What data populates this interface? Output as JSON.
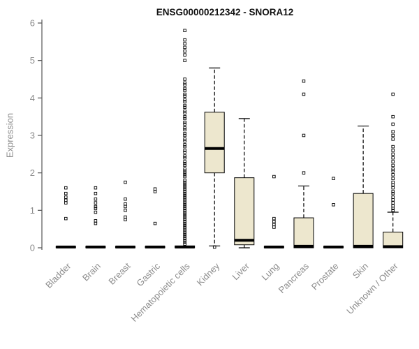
{
  "chart_data": {
    "type": "boxplot",
    "title": "ENSG00000212342 - SNORA12",
    "ylabel": "Expression",
    "xlabel": "",
    "ylim": [
      0,
      6
    ],
    "yticks": [
      0,
      1,
      2,
      3,
      4,
      5,
      6
    ],
    "grid": false,
    "legend": "none",
    "colors": {
      "box_fill": "#EDE7CE",
      "line": "#000000",
      "axis": "#555555",
      "label": "#8c8c8c",
      "title": "#111111",
      "background": "#ffffff"
    },
    "categories": [
      "Bladder",
      "Brain",
      "Breast",
      "Gastric",
      "Hematopoietic cells",
      "Kidney",
      "Liver",
      "Lung",
      "Pancreas",
      "Prostate",
      "Skin",
      "Unknown / Other"
    ],
    "boxes": [
      {
        "category": "Bladder",
        "low": 0,
        "q1": 0,
        "median": 0.02,
        "q3": 0.04,
        "high": 0.04,
        "outliers": [
          0.78,
          1.2,
          1.27,
          1.35,
          1.45,
          1.6
        ]
      },
      {
        "category": "Brain",
        "low": 0,
        "q1": 0,
        "median": 0.02,
        "q3": 0.04,
        "high": 0.04,
        "outliers": [
          0.65,
          0.72,
          0.95,
          1.05,
          1.1,
          1.2,
          1.3,
          1.45,
          1.6
        ]
      },
      {
        "category": "Breast",
        "low": 0,
        "q1": 0,
        "median": 0.02,
        "q3": 0.04,
        "high": 0.04,
        "outliers": [
          0.75,
          0.82,
          1.0,
          1.1,
          1.17,
          1.3,
          1.75
        ]
      },
      {
        "category": "Gastric",
        "low": 0,
        "q1": 0,
        "median": 0.02,
        "q3": 0.04,
        "high": 0.04,
        "outliers": [
          0.65,
          1.5,
          1.57
        ]
      },
      {
        "category": "Hematopoietic cells",
        "low": 0,
        "q1": 0,
        "median": 0.02,
        "q3": 0.05,
        "high": 0.05,
        "outliers": [
          0.1,
          0.15,
          0.2,
          0.25,
          0.3,
          0.35,
          0.4,
          0.45,
          0.5,
          0.55,
          0.6,
          0.65,
          0.7,
          0.75,
          0.8,
          0.85,
          0.9,
          0.95,
          1.0,
          1.05,
          1.1,
          1.15,
          1.2,
          1.25,
          1.3,
          1.35,
          1.4,
          1.45,
          1.5,
          1.55,
          1.6,
          1.65,
          1.7,
          1.75,
          1.8,
          1.9,
          1.95,
          2.0,
          2.05,
          2.1,
          2.2,
          2.25,
          2.3,
          2.4,
          2.45,
          2.55,
          2.6,
          2.7,
          2.75,
          2.85,
          2.9,
          3.0,
          3.05,
          3.15,
          3.2,
          3.3,
          3.35,
          3.45,
          3.5,
          3.6,
          3.65,
          3.75,
          3.8,
          3.9,
          3.95,
          4.05,
          4.1,
          4.2,
          4.25,
          4.35,
          4.4,
          4.5,
          5.0,
          5.15,
          5.25,
          5.35,
          5.45,
          5.55,
          5.8
        ]
      },
      {
        "category": "Kidney",
        "low": 0.05,
        "q1": 2.0,
        "median": 2.65,
        "q3": 3.62,
        "high": 4.8,
        "outliers": [
          0.02
        ]
      },
      {
        "category": "Liver",
        "low": 0,
        "q1": 0.08,
        "median": 0.2,
        "q3": 1.87,
        "high": 3.45,
        "outliers": []
      },
      {
        "category": "Lung",
        "low": 0,
        "q1": 0,
        "median": 0.02,
        "q3": 0.04,
        "high": 0.04,
        "outliers": [
          0.55,
          0.62,
          0.7,
          0.78,
          1.9
        ]
      },
      {
        "category": "Pancreas",
        "low": 0,
        "q1": 0,
        "median": 0.04,
        "q3": 0.8,
        "high": 1.65,
        "outliers": [
          2.0,
          3.0,
          4.1,
          4.45
        ]
      },
      {
        "category": "Prostate",
        "low": 0,
        "q1": 0,
        "median": 0.02,
        "q3": 0.04,
        "high": 0.04,
        "outliers": [
          1.15,
          1.85
        ]
      },
      {
        "category": "Skin",
        "low": 0,
        "q1": 0,
        "median": 0.04,
        "q3": 1.45,
        "high": 3.25,
        "outliers": []
      },
      {
        "category": "Unknown / Other",
        "low": 0,
        "q1": 0,
        "median": 0.03,
        "q3": 0.42,
        "high": 0.95,
        "outliers": [
          1.0,
          1.05,
          1.12,
          1.2,
          1.28,
          1.35,
          1.45,
          1.5,
          1.6,
          1.68,
          1.75,
          1.85,
          1.95,
          2.05,
          2.1,
          2.2,
          2.3,
          2.4,
          2.5,
          2.6,
          2.7,
          2.9,
          3.0,
          3.1,
          3.3,
          3.5,
          4.1
        ]
      }
    ]
  }
}
